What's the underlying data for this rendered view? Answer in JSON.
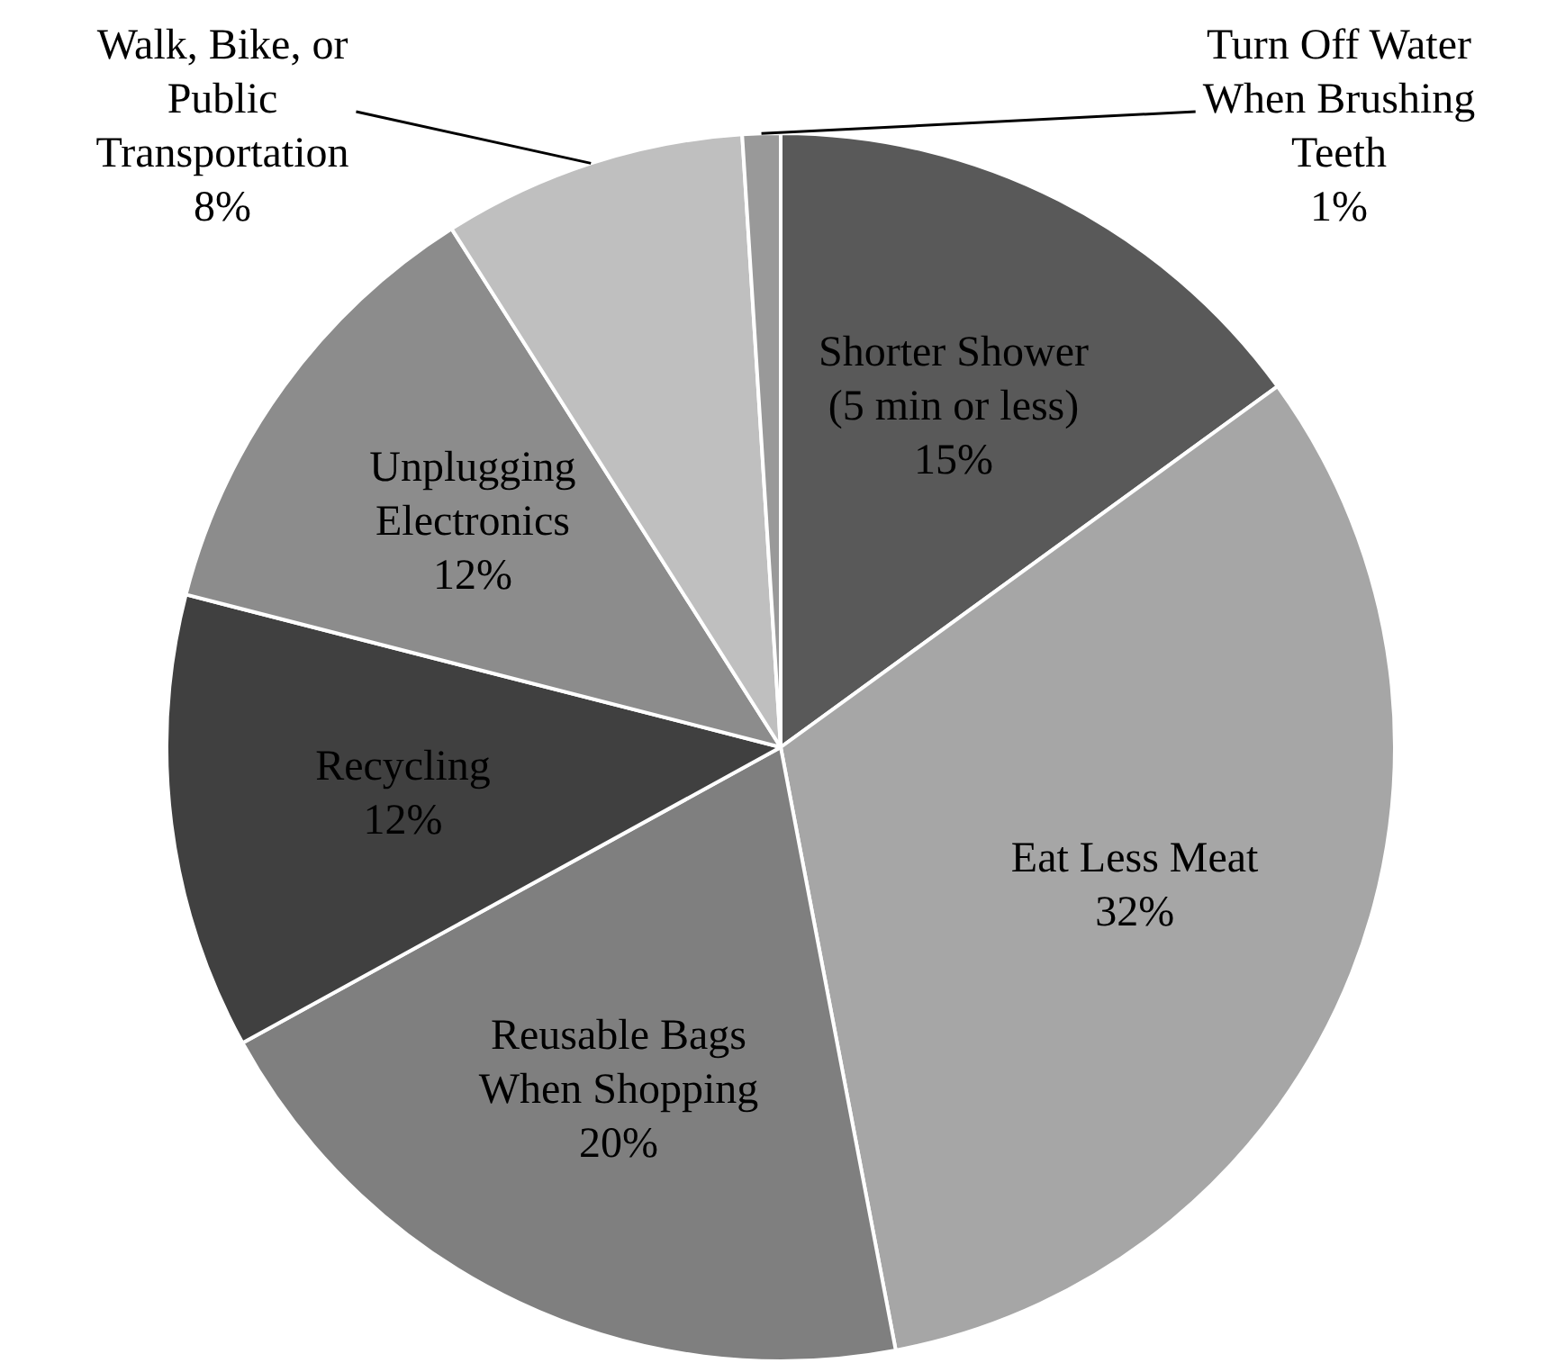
{
  "chart_data": {
    "type": "pie",
    "categories": [
      "Shorter Shower (5 min or less)",
      "Eat Less Meat",
      "Reusable Bags When Shopping",
      "Recycling",
      "Unplugging Electronics",
      "Walk, Bike, or Public Transportation",
      "Turn Off Water When Brushing Teeth"
    ],
    "values": [
      15,
      32,
      20,
      12,
      12,
      8,
      1
    ],
    "value_labels": [
      "15%",
      "32%",
      "20%",
      "12%",
      "12%",
      "8%",
      "1%"
    ],
    "colors": [
      "#595959",
      "#a6a6a6",
      "#7f7f7f",
      "#404040",
      "#8c8c8c",
      "#bfbfbf",
      "#999999"
    ],
    "legend": false
  }
}
